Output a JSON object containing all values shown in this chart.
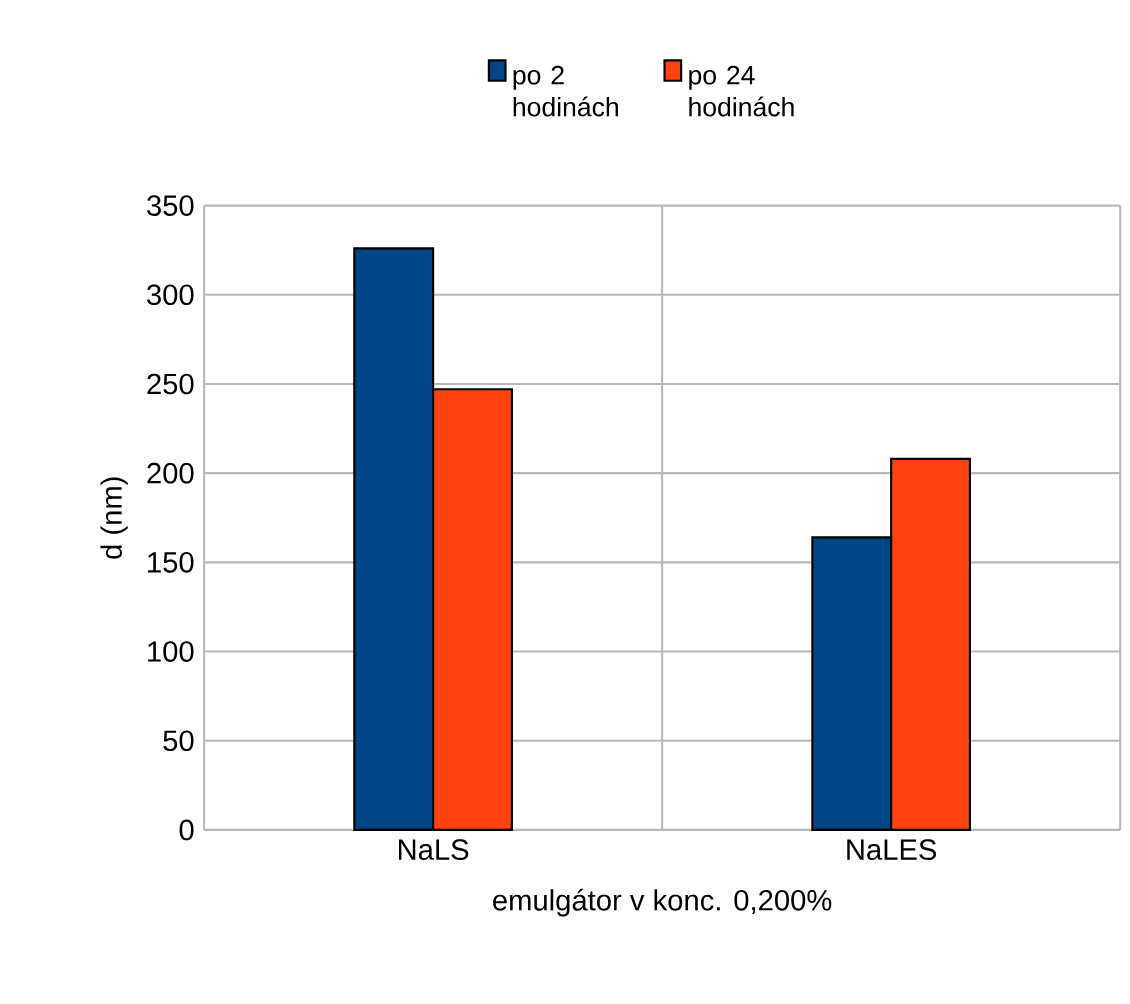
{
  "chart_data": {
    "type": "bar",
    "xlabel": "emulgátor v konc. 0,200%",
    "ylabel": "d (nm)",
    "categories": [
      "NaLS",
      "NaLES"
    ],
    "series": [
      {
        "name": "po 2 hodinách",
        "color": "#004586",
        "values": [
          326,
          164
        ]
      },
      {
        "name": "po 24 hodinách",
        "color": "#ff420e",
        "values": [
          247,
          208
        ]
      }
    ],
    "ylim": [
      0,
      350
    ],
    "yticks": [
      0,
      50,
      100,
      150,
      200,
      250,
      300,
      350
    ],
    "grid": true,
    "legend": "top"
  }
}
